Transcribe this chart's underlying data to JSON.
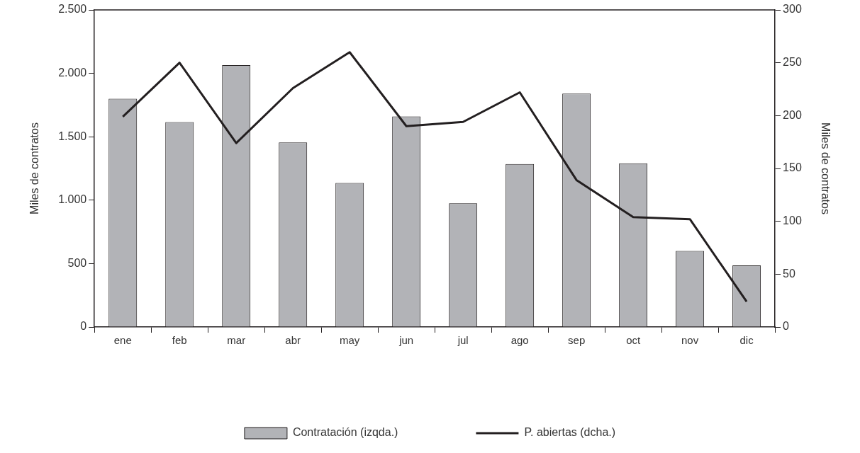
{
  "chart_data": {
    "type": "bar",
    "categories": [
      "ene",
      "feb",
      "mar",
      "abr",
      "may",
      "jun",
      "jul",
      "ago",
      "sep",
      "oct",
      "nov",
      "dic"
    ],
    "series": [
      {
        "name": "Contratación (izqda.)",
        "color": "#b2b3b7",
        "values": [
          1800,
          1615,
          2065,
          1455,
          1135,
          1660,
          975,
          1285,
          1840,
          1290,
          600,
          485
        ]
      },
      {
        "name": "P. abiertas (dcha.)",
        "type": "line",
        "axis": "y2",
        "color": "#231f20",
        "values": [
          199,
          250,
          174,
          226,
          260,
          190,
          194,
          222,
          139,
          104,
          102,
          24
        ]
      }
    ],
    "ylabel": "Miles de contratos",
    "y2label": "Miles de contratos",
    "ylim": [
      0,
      2500
    ],
    "yticks": [
      0,
      {
        "value": 500,
        "label": "500"
      },
      {
        "value": 1000,
        "label": "1.000"
      },
      {
        "value": 1500,
        "label": "1.500"
      },
      {
        "value": 2000,
        "label": "2.000"
      },
      {
        "value": 2500,
        "label": "2.500"
      }
    ],
    "y2lim": [
      0,
      300
    ],
    "y2ticks": [
      0,
      50,
      100,
      150,
      200,
      250,
      300
    ],
    "grid": false,
    "legend": "bottom",
    "marker": "none",
    "line_style": "solid"
  }
}
